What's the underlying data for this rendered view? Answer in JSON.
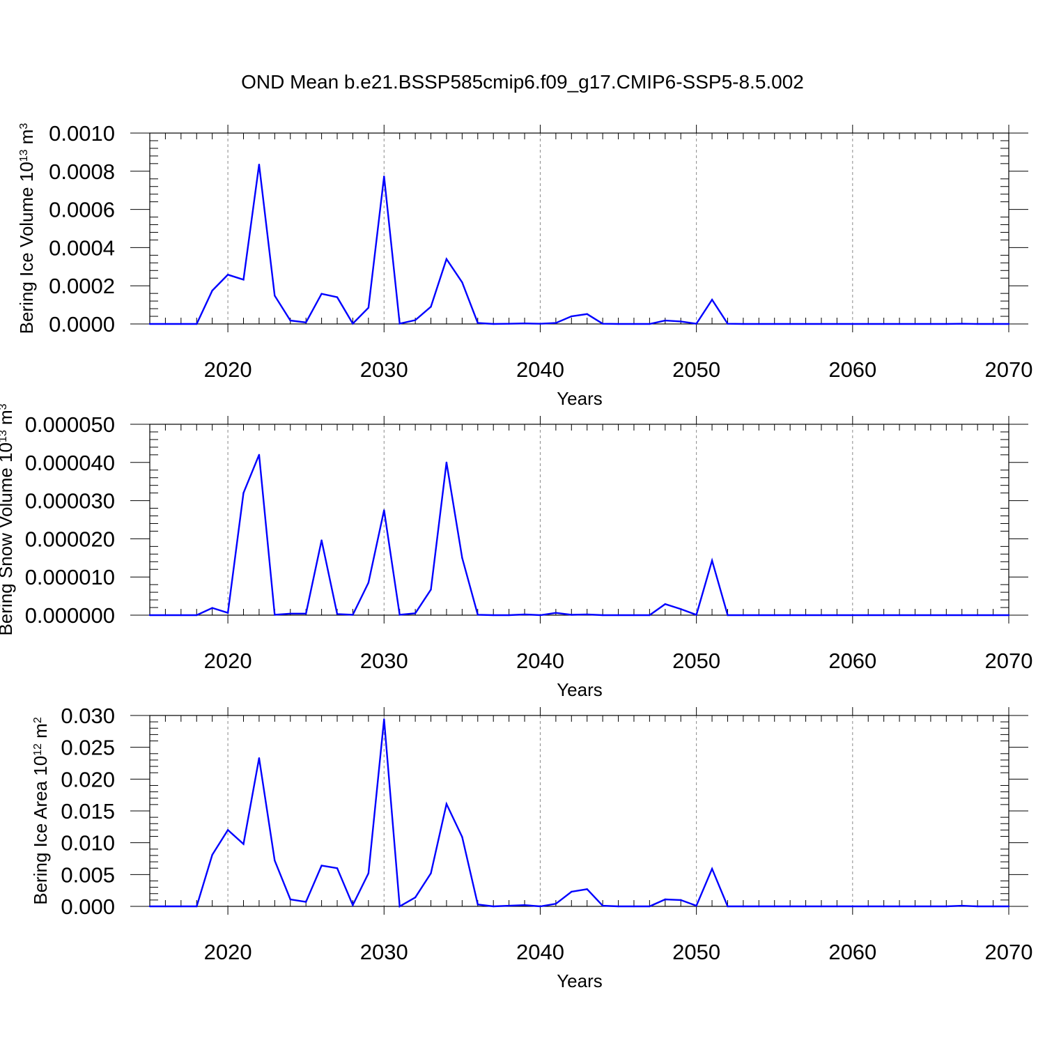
{
  "figure": {
    "title": "OND Mean b.e21.BSSP585cmip6.f09_g17.CMIP6-SSP5-8.5.002"
  },
  "chart_data": [
    {
      "type": "line",
      "xlabel": "Years",
      "ylabel": {
        "prefix": "Bering Ice Volume 10",
        "exp1": "13",
        "mid": " m",
        "exp2": "3"
      },
      "xlim": [
        2015,
        2070
      ],
      "ylim": [
        0,
        0.001
      ],
      "xticks": [
        "2020",
        "2030",
        "2040",
        "2050",
        "2060",
        "2070"
      ],
      "yticks": [
        "0.0000",
        "0.0002",
        "0.0004",
        "0.0006",
        "0.0008",
        "0.0010"
      ],
      "grid": "vertical dashed at major x ticks",
      "color": "#0000ff",
      "x": [
        2015,
        2016,
        2017,
        2018,
        2019,
        2020,
        2021,
        2022,
        2023,
        2024,
        2025,
        2026,
        2027,
        2028,
        2029,
        2030,
        2031,
        2032,
        2033,
        2034,
        2035,
        2036,
        2037,
        2038,
        2039,
        2040,
        2041,
        2042,
        2043,
        2044,
        2045,
        2046,
        2047,
        2048,
        2049,
        2050,
        2051,
        2052,
        2053,
        2054,
        2055,
        2056,
        2057,
        2058,
        2059,
        2060,
        2061,
        2062,
        2063,
        2064,
        2065,
        2066,
        2067,
        2068,
        2069,
        2070
      ],
      "y": [
        0,
        0,
        0,
        0,
        0.000175,
        0.000258,
        0.000232,
        0.000835,
        0.000148,
        1.8e-05,
        8e-06,
        0.000158,
        0.00014,
        2e-06,
        8.5e-05,
        0.000773,
        2e-06,
        2e-05,
        9e-05,
        0.00034,
        0.000218,
        5e-06,
        0,
        1e-06,
        3e-06,
        1e-06,
        5e-06,
        4e-05,
        5.2e-05,
        1e-06,
        0,
        0,
        0,
        1.8e-05,
        1.3e-05,
        1e-06,
        0.000127,
        1e-06,
        0,
        0,
        0,
        0,
        0,
        0,
        0,
        0,
        0,
        0,
        0,
        0,
        0,
        0,
        1e-06,
        0,
        0,
        0
      ]
    },
    {
      "type": "line",
      "xlabel": "Years",
      "ylabel": {
        "prefix": "Bering Snow Volume 10",
        "exp1": "13",
        "mid": " m",
        "exp2": "3"
      },
      "xlim": [
        2015,
        2070
      ],
      "ylim": [
        0,
        5e-05
      ],
      "xticks": [
        "2020",
        "2030",
        "2040",
        "2050",
        "2060",
        "2070"
      ],
      "yticks": [
        "0.000000",
        "0.000010",
        "0.000020",
        "0.000030",
        "0.000040",
        "0.000050"
      ],
      "grid": "vertical dashed at major x ticks",
      "color": "#0000ff",
      "x": [
        2015,
        2016,
        2017,
        2018,
        2019,
        2020,
        2021,
        2022,
        2023,
        2024,
        2025,
        2026,
        2027,
        2028,
        2029,
        2030,
        2031,
        2032,
        2033,
        2034,
        2035,
        2036,
        2037,
        2038,
        2039,
        2040,
        2041,
        2042,
        2043,
        2044,
        2045,
        2046,
        2047,
        2048,
        2049,
        2050,
        2051,
        2052,
        2053,
        2054,
        2055,
        2056,
        2057,
        2058,
        2059,
        2060,
        2061,
        2062,
        2063,
        2064,
        2065,
        2066,
        2067,
        2068,
        2069,
        2070
      ],
      "y": [
        0,
        0,
        0,
        0,
        1.9e-06,
        6e-07,
        3.2e-05,
        4.2e-05,
        1e-07,
        4e-07,
        4e-07,
        1.96e-05,
        3e-07,
        1e-07,
        8.5e-06,
        2.75e-05,
        1e-07,
        5e-07,
        6.7e-06,
        4e-05,
        1.5e-05,
        1e-07,
        0,
        0,
        2e-07,
        0,
        6e-07,
        1e-07,
        2e-07,
        0,
        0,
        0,
        0,
        2.9e-06,
        1.6e-06,
        1e-07,
        1.43e-05,
        0,
        0,
        0,
        0,
        0,
        0,
        0,
        0,
        0,
        0,
        0,
        0,
        0,
        0,
        0,
        0,
        0,
        0,
        0
      ]
    },
    {
      "type": "line",
      "xlabel": "Years",
      "ylabel": {
        "prefix": "Bering Ice Area 10",
        "exp1": "12",
        "mid": " m",
        "exp2": "2"
      },
      "xlim": [
        2015,
        2070
      ],
      "ylim": [
        0,
        0.03
      ],
      "xticks": [
        "2020",
        "2030",
        "2040",
        "2050",
        "2060",
        "2070"
      ],
      "yticks": [
        "0.000",
        "0.005",
        "0.010",
        "0.015",
        "0.020",
        "0.025",
        "0.030"
      ],
      "grid": "vertical dashed at major x ticks",
      "color": "#0000ff",
      "x": [
        2015,
        2016,
        2017,
        2018,
        2019,
        2020,
        2021,
        2022,
        2023,
        2024,
        2025,
        2026,
        2027,
        2028,
        2029,
        2030,
        2031,
        2032,
        2033,
        2034,
        2035,
        2036,
        2037,
        2038,
        2039,
        2040,
        2041,
        2042,
        2043,
        2044,
        2045,
        2046,
        2047,
        2048,
        2049,
        2050,
        2051,
        2052,
        2053,
        2054,
        2055,
        2056,
        2057,
        2058,
        2059,
        2060,
        2061,
        2062,
        2063,
        2064,
        2065,
        2066,
        2067,
        2068,
        2069,
        2070
      ],
      "y": [
        0,
        0,
        0,
        0,
        0.0081,
        0.012,
        0.0098,
        0.0233,
        0.0072,
        0.0011,
        0.0007,
        0.0064,
        0.006,
        0.0002,
        0.0052,
        0.0294,
        0,
        0.0014,
        0.0052,
        0.0161,
        0.0109,
        0.0003,
        0,
        0.0001,
        0.0002,
        0,
        0.0004,
        0.0023,
        0.0027,
        0.0001,
        0,
        0,
        0,
        0.0011,
        0.001,
        0.0001,
        0.0059,
        0,
        0,
        0,
        0,
        0,
        0,
        0,
        0,
        0,
        0,
        0,
        0,
        0,
        0,
        0,
        0.0001,
        0,
        0,
        0
      ]
    }
  ]
}
